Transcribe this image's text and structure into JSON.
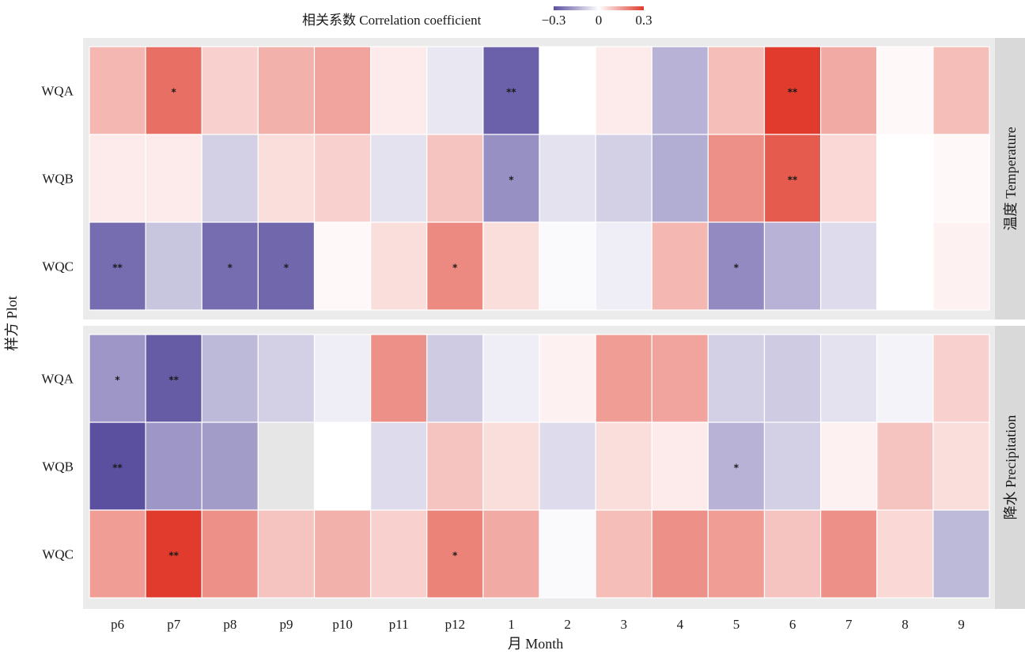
{
  "chart_data": {
    "type": "heatmap",
    "xlabel": "月 Month",
    "ylabel": "样方 Plot",
    "legend": {
      "title": "相关系数 Correlation coefficient",
      "ticks": [
        "−0.3",
        "0",
        "0.3"
      ],
      "range": [
        -0.3,
        0.3
      ],
      "placement": "top",
      "colors": {
        "negative": "#5b50a0",
        "zero": "#ffffff",
        "positive": "#e03b2c"
      }
    },
    "categories": [
      "p6",
      "p7",
      "p8",
      "p9",
      "p10",
      "p11",
      "p12",
      "1",
      "2",
      "3",
      "4",
      "5",
      "6",
      "7",
      "8",
      "9"
    ],
    "rows": [
      "WQA",
      "WQB",
      "WQC"
    ],
    "missing_color": "#e6e6e6",
    "panels": [
      {
        "label": "温度 Temperature",
        "series": [
          {
            "name": "WQA",
            "values": [
              0.11,
              0.22,
              0.07,
              0.12,
              0.14,
              0.03,
              -0.04,
              -0.27,
              0.0,
              0.03,
              -0.13,
              0.1,
              0.33,
              0.13,
              0.01,
              0.1
            ],
            "stars": [
              "",
              "*",
              "",
              "",
              "",
              "",
              "",
              "**",
              "",
              "",
              "",
              "",
              "**",
              "",
              "",
              ""
            ]
          },
          {
            "name": "WQB",
            "values": [
              0.03,
              0.03,
              -0.08,
              0.05,
              0.07,
              -0.05,
              0.09,
              -0.19,
              -0.05,
              -0.08,
              -0.14,
              0.17,
              0.25,
              0.06,
              0.0,
              0.01
            ],
            "stars": [
              "",
              "",
              "",
              "",
              "",
              "",
              "",
              "*",
              "",
              "",
              "",
              "",
              "**",
              "",
              "",
              ""
            ]
          },
          {
            "name": "WQC",
            "values": [
              -0.25,
              -0.1,
              -0.25,
              -0.26,
              0.01,
              0.05,
              0.18,
              0.05,
              -0.01,
              -0.03,
              0.11,
              -0.2,
              -0.13,
              -0.06,
              0.0,
              0.02
            ],
            "stars": [
              "**",
              "",
              "*",
              "*",
              "",
              "",
              "*",
              "",
              "",
              "",
              "",
              "*",
              "",
              "",
              "",
              ""
            ]
          }
        ]
      },
      {
        "label": "降水 Precipitation",
        "series": [
          {
            "name": "WQA",
            "values": [
              -0.18,
              -0.28,
              -0.12,
              -0.08,
              -0.03,
              0.17,
              -0.09,
              -0.03,
              0.02,
              0.15,
              0.14,
              -0.08,
              -0.09,
              -0.05,
              -0.02,
              0.07
            ],
            "stars": [
              "*",
              "**",
              "",
              "",
              "",
              "",
              "",
              "",
              "",
              "",
              "",
              "",
              "",
              "",
              "",
              ""
            ]
          },
          {
            "name": "WQB",
            "values": [
              -0.33,
              -0.18,
              -0.17,
              null,
              0.0,
              -0.06,
              0.09,
              0.05,
              -0.06,
              0.05,
              0.03,
              -0.13,
              -0.08,
              0.02,
              0.09,
              0.05
            ],
            "stars": [
              "**",
              "",
              "",
              "",
              "",
              "",
              "",
              "",
              "",
              "",
              "",
              "*",
              "",
              "",
              "",
              ""
            ]
          },
          {
            "name": "WQC",
            "values": [
              0.15,
              0.3,
              0.17,
              0.09,
              0.12,
              0.07,
              0.19,
              0.13,
              -0.01,
              0.1,
              0.17,
              0.15,
              0.09,
              0.17,
              0.06,
              -0.12
            ],
            "stars": [
              "",
              "**",
              "",
              "",
              "",
              "",
              "*",
              "",
              "",
              "",
              "",
              "",
              "",
              "",
              "",
              ""
            ]
          }
        ]
      }
    ]
  }
}
